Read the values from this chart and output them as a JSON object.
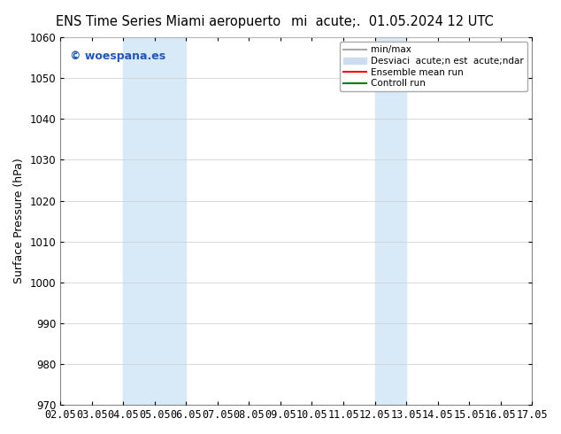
{
  "title_left": "ENS Time Series Miami aeropuerto",
  "title_right": "mi  acute;.  01.05.2024 12 UTC",
  "ylabel": "Surface Pressure (hPa)",
  "ylim": [
    970,
    1060
  ],
  "yticks": [
    970,
    980,
    990,
    1000,
    1010,
    1020,
    1030,
    1040,
    1050,
    1060
  ],
  "xtick_labels": [
    "02.05",
    "03.05",
    "04.05",
    "05.05",
    "06.05",
    "07.05",
    "08.05",
    "09.05",
    "10.05",
    "11.05",
    "12.05",
    "13.05",
    "14.05",
    "15.05",
    "16.05",
    "17.05"
  ],
  "watermark": "© woespana.es",
  "watermark_color": "#2255bb",
  "bg_color": "#ffffff",
  "shaded_regions": [
    {
      "xstart": 2,
      "xend": 4,
      "color": "#d8eaf8"
    },
    {
      "xstart": 10,
      "xend": 11,
      "color": "#d8eaf8"
    }
  ],
  "legend_entries": [
    {
      "label": "min/max",
      "color": "#aaaaaa",
      "linewidth": 1.5,
      "type": "line"
    },
    {
      "label": "Desviaci  acute;n est  acute;ndar",
      "color": "#ccddef",
      "linewidth": 5,
      "type": "patch"
    },
    {
      "label": "Ensemble mean run",
      "color": "#ff0000",
      "linewidth": 1.5,
      "type": "line"
    },
    {
      "label": "Controll run",
      "color": "#008000",
      "linewidth": 1.5,
      "type": "line"
    }
  ],
  "title_fontsize": 10.5,
  "axis_fontsize": 9,
  "tick_fontsize": 8.5,
  "legend_fontsize": 7.5
}
